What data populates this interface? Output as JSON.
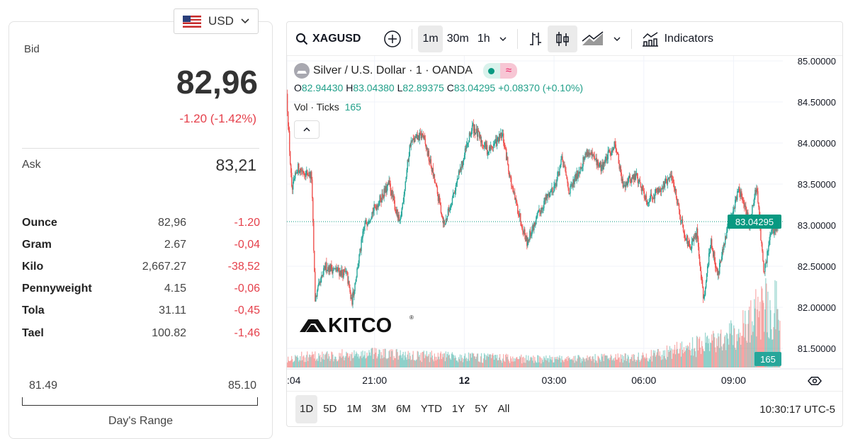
{
  "currency": {
    "selected": "USD"
  },
  "quote": {
    "bid_label": "Bid",
    "bid": "82,96",
    "change": "-1.20 (-1.42%)",
    "ask_label": "Ask",
    "ask": "83,21"
  },
  "units": [
    {
      "name": "Ounce",
      "value": "82,96",
      "change": "-1.20"
    },
    {
      "name": "Gram",
      "value": "2.67",
      "change": "-0,04"
    },
    {
      "name": "Kilo",
      "value": "2,667.27",
      "change": "-38,52"
    },
    {
      "name": "Pennyweight",
      "value": "4.15",
      "change": "-0,06"
    },
    {
      "name": "Tola",
      "value": "31.11",
      "change": "-0,45"
    },
    {
      "name": "Tael",
      "value": "100.82",
      "change": "-1,46"
    }
  ],
  "range": {
    "low": "81.49",
    "high": "85.10",
    "label": "Day's Range"
  },
  "toolbar": {
    "symbol": "XAGUSD",
    "intervals": [
      "1m",
      "30m",
      "1h"
    ],
    "selected_interval": "1m",
    "indicators": "Indicators"
  },
  "legend": {
    "title": "Silver / U.S. Dollar · 1 · OANDA",
    "o_label": "O",
    "o": "82.94430",
    "h_label": "H",
    "h": "83.04380",
    "l_label": "L",
    "l": "82.89375",
    "c_label": "C",
    "c": "83.04295",
    "change": "+0.08370 (+0.10%)",
    "vol_label": "Vol · Ticks",
    "vol": "165"
  },
  "ranges": [
    "1D",
    "5D",
    "1M",
    "3M",
    "6M",
    "YTD",
    "1Y",
    "5Y",
    "All"
  ],
  "selected_range": "1D",
  "clock": "10:30:17 UTC-5",
  "watermark": "KITCO",
  "colors": {
    "up": "#26a69a",
    "down": "#ef5350",
    "accent": "#089981"
  },
  "chart_data": {
    "type": "candlestick",
    "title": "Silver / U.S. Dollar · 1 · OANDA",
    "y_ticks": [
      "85.00000",
      "84.50000",
      "84.00000",
      "83.50000",
      "83.00000",
      "82.50000",
      "82.00000",
      "81.50000"
    ],
    "ylim": [
      81.35,
      85.0
    ],
    "x_ticks": [
      {
        "label": ":04",
        "h": -5.93
      },
      {
        "label": "21:00",
        "h": -3
      },
      {
        "label": "12",
        "h": 0
      },
      {
        "label": "03:00",
        "h": 3
      },
      {
        "label": "06:00",
        "h": 6
      },
      {
        "label": "09:00",
        "h": 9
      }
    ],
    "xlim": [
      -5.93,
      10.6
    ],
    "last_price": "83.04295",
    "last_volume": "165",
    "price_path": [
      [
        -5.93,
        84.6
      ],
      [
        -5.76,
        83.4
      ],
      [
        -5.57,
        83.7
      ],
      [
        -5.1,
        83.6
      ],
      [
        -4.98,
        82.1
      ],
      [
        -4.63,
        82.5
      ],
      [
        -3.92,
        82.4
      ],
      [
        -3.76,
        82.05
      ],
      [
        -3.33,
        83.0
      ],
      [
        -2.5,
        83.5
      ],
      [
        -2.15,
        83.0
      ],
      [
        -1.8,
        84.0
      ],
      [
        -1.39,
        84.1
      ],
      [
        -1.09,
        83.7
      ],
      [
        -0.66,
        83.0
      ],
      [
        -0.26,
        83.5
      ],
      [
        0.28,
        84.2
      ],
      [
        0.8,
        83.9
      ],
      [
        1.28,
        84.1
      ],
      [
        1.63,
        83.4
      ],
      [
        2.1,
        82.8
      ],
      [
        2.69,
        83.3
      ],
      [
        3.05,
        83.5
      ],
      [
        3.28,
        83.8
      ],
      [
        3.52,
        83.4
      ],
      [
        4.11,
        83.9
      ],
      [
        4.58,
        83.7
      ],
      [
        5.06,
        84.0
      ],
      [
        5.29,
        83.5
      ],
      [
        5.76,
        83.6
      ],
      [
        6.12,
        83.3
      ],
      [
        6.71,
        83.5
      ],
      [
        6.95,
        83.6
      ],
      [
        7.3,
        83.0
      ],
      [
        7.54,
        82.7
      ],
      [
        7.78,
        82.9
      ],
      [
        8.01,
        82.1
      ],
      [
        8.25,
        82.8
      ],
      [
        8.48,
        82.4
      ],
      [
        8.84,
        83.0
      ],
      [
        9.19,
        83.45
      ],
      [
        9.54,
        83.0
      ],
      [
        9.78,
        83.5
      ],
      [
        10.02,
        82.4
      ],
      [
        10.25,
        82.9
      ],
      [
        10.56,
        83.04
      ]
    ],
    "volume_level_by_hour": [
      [
        -5.93,
        0.15
      ],
      [
        -3,
        0.2
      ],
      [
        0,
        0.15
      ],
      [
        3,
        0.12
      ],
      [
        6,
        0.15
      ],
      [
        8,
        0.35
      ],
      [
        9,
        0.5
      ],
      [
        10,
        0.9
      ],
      [
        10.56,
        0.85
      ]
    ],
    "candles_per_hour": 42,
    "noise": 0.06
  }
}
